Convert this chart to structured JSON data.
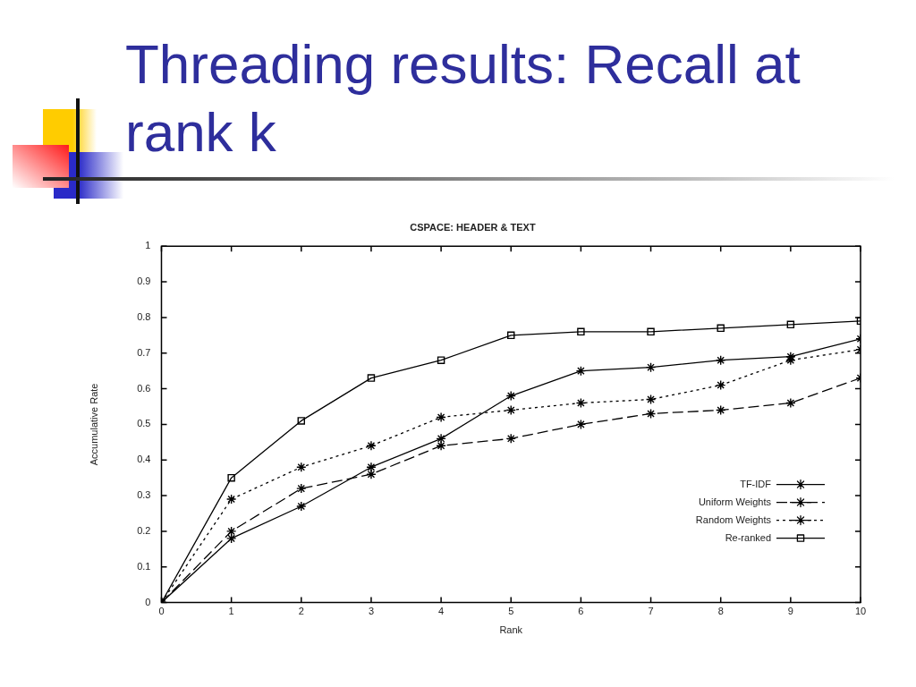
{
  "chart_data": {
    "type": "line",
    "title": "Threading results: Recall at rank k",
    "subtitle": "CSPACE: HEADER & TEXT",
    "xlabel": "Rank",
    "ylabel": "Accumulative Rate",
    "x": [
      0,
      1,
      2,
      3,
      4,
      5,
      6,
      7,
      8,
      9,
      10
    ],
    "xlim": [
      0,
      10
    ],
    "xticks": [
      0,
      1,
      2,
      3,
      4,
      5,
      6,
      7,
      8,
      9,
      10
    ],
    "ylim": [
      0,
      1
    ],
    "yticks": [
      0,
      0.1,
      0.2,
      0.3,
      0.4,
      0.5,
      0.6,
      0.7,
      0.8,
      0.9,
      1
    ],
    "legend": "bottom right",
    "series": [
      {
        "name": "TF-IDF",
        "color": "#000000",
        "marker": "cross",
        "line_style": "solid",
        "values": [
          0,
          0.18,
          0.27,
          0.38,
          0.46,
          0.58,
          0.65,
          0.66,
          0.68,
          0.69,
          0.74
        ]
      },
      {
        "name": "Uniform Weights",
        "color": "#000000",
        "marker": "cross",
        "line_style": "dashed",
        "values": [
          0,
          0.2,
          0.32,
          0.36,
          0.44,
          0.46,
          0.5,
          0.53,
          0.54,
          0.56,
          0.63
        ]
      },
      {
        "name": "Random Weights",
        "color": "#000000",
        "marker": "cross",
        "line_style": "dotted",
        "values": [
          0,
          0.29,
          0.38,
          0.44,
          0.52,
          0.54,
          0.56,
          0.57,
          0.61,
          0.68,
          0.71
        ]
      },
      {
        "name": "Re-ranked",
        "color": "#000000",
        "marker": "square",
        "line_style": "solid",
        "values": [
          0,
          0.35,
          0.51,
          0.63,
          0.68,
          0.75,
          0.76,
          0.76,
          0.77,
          0.78,
          0.79
        ]
      }
    ]
  }
}
